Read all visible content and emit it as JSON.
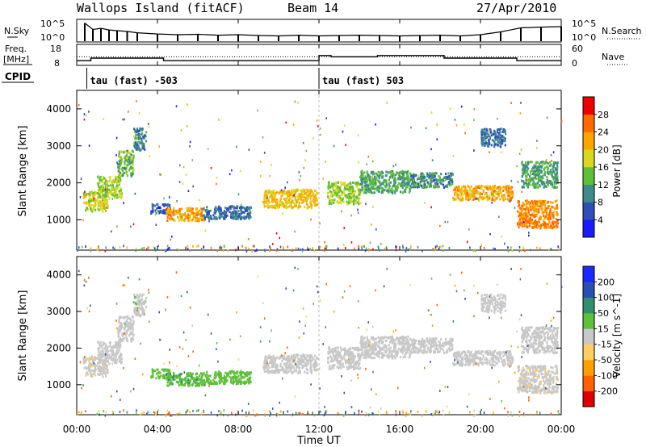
{
  "header": {
    "station": "Wallops Island (fitACF)",
    "beam": "Beam 14",
    "date": "27/Apr/2010"
  },
  "noise_panel": {
    "left_label": "N.Sky",
    "right_label": "N.Search",
    "left_ticks": [
      "10^5",
      "10^0"
    ],
    "right_ticks": [
      "10^5",
      "10^0"
    ]
  },
  "freq_panel": {
    "left_label_line1": "Freq.",
    "left_label_line2": "[MHz]",
    "right_label": "Nave",
    "left_ticks": [
      "18",
      "8"
    ],
    "right_ticks": [
      "60",
      "0"
    ]
  },
  "cpid_panel": {
    "label": "CPID",
    "entries": [
      {
        "time_hr": 0.5,
        "text": "tau (fast) -503"
      },
      {
        "time_hr": 12.0,
        "text": "tau (fast) 503"
      }
    ]
  },
  "time_axis": {
    "label": "Time UT",
    "range_hr": [
      0,
      24
    ],
    "ticks": [
      {
        "value": 0,
        "label": "00:00"
      },
      {
        "value": 4,
        "label": "04:00"
      },
      {
        "value": 8,
        "label": "08:00"
      },
      {
        "value": 12,
        "label": "12:00"
      },
      {
        "value": 16,
        "label": "16:00"
      },
      {
        "value": 20,
        "label": "20:00"
      },
      {
        "value": 24,
        "label": "00:00"
      }
    ]
  },
  "range_axis": {
    "label": "Slant Range [km]",
    "range_km": [
      180,
      4500
    ],
    "ticks": [
      1000,
      2000,
      3000,
      4000
    ]
  },
  "power_colorbar": {
    "label": "Power [dB]",
    "ticks": [
      "4",
      "8",
      "12",
      "16",
      "20",
      "24",
      "28"
    ],
    "colors": [
      "#1a1aff",
      "#2e4fb8",
      "#3f8a8a",
      "#5fbf3a",
      "#d8d820",
      "#ffa500",
      "#ff6a00",
      "#ee0000"
    ]
  },
  "velocity_colorbar": {
    "label": "Velocity [m s^-1]",
    "ticks": [
      "-200",
      "-100",
      "-50",
      "-15",
      "15",
      "50",
      "100",
      "200"
    ],
    "colors": [
      "#e00000",
      "#ff6000",
      "#ffa000",
      "#ffd060",
      "#c8c8c8",
      "#5fc03a",
      "#2f8f6f",
      "#2a4fb0",
      "#1a2aff"
    ]
  },
  "chart_data": [
    {
      "type": "line",
      "title": "N.Sky / N.Search",
      "x_unit": "hours UT",
      "yscale": "log",
      "ylim": [
        1,
        100000
      ],
      "x": [
        0.4,
        0.8,
        1.2,
        1.6,
        2.0,
        2.5,
        3.0,
        4.0,
        5.0,
        6.0,
        7.0,
        8.0,
        9.0,
        10.0,
        11.0,
        12.0,
        13.0,
        14.0,
        15.0,
        16.0,
        17.0,
        18.0,
        19.0,
        20.0,
        21.0,
        22.0,
        23.0,
        24.0
      ],
      "y": [
        30000,
        800,
        1500,
        600,
        400,
        250,
        120,
        60,
        40,
        50,
        30,
        40,
        25,
        20,
        30,
        20,
        25,
        30,
        25,
        20,
        25,
        30,
        20,
        40,
        200,
        2000,
        3000,
        4000
      ]
    },
    {
      "type": "line",
      "title": "Freq. / Nave",
      "x_unit": "hours UT",
      "series": [
        {
          "name": "Freq. [MHz]",
          "x": [
            0,
            0.7,
            0.7,
            4.3,
            4.3,
            12.0,
            12.0,
            12.6,
            12.6,
            14.9,
            14.9,
            18.2,
            18.2,
            21.8,
            21.8,
            24.0
          ],
          "y": [
            11,
            11,
            13,
            13,
            11,
            11,
            15,
            15,
            14,
            14,
            15,
            15,
            13,
            13,
            11,
            11
          ]
        },
        {
          "name": "Nave",
          "x": [
            0,
            24
          ],
          "y": [
            14,
            14
          ]
        }
      ]
    },
    {
      "type": "heatmap",
      "title": "Power [dB]",
      "x_unit": "hours UT",
      "y_unit": "km",
      "regions": [
        {
          "t0": 0.3,
          "t1": 1.5,
          "r0": 1250,
          "r1": 1800,
          "value": 18
        },
        {
          "t0": 1.0,
          "t1": 2.2,
          "r0": 1600,
          "r1": 2200,
          "value": 16
        },
        {
          "t0": 2.0,
          "t1": 2.8,
          "r0": 2200,
          "r1": 2900,
          "value": 14
        },
        {
          "t0": 2.8,
          "t1": 3.4,
          "r0": 2900,
          "r1": 3500,
          "value": 10
        },
        {
          "t0": 3.6,
          "t1": 4.6,
          "r0": 1200,
          "r1": 1450,
          "value": 6
        },
        {
          "t0": 4.4,
          "t1": 6.4,
          "r0": 1000,
          "r1": 1350,
          "value": 22
        },
        {
          "t0": 6.2,
          "t1": 8.6,
          "r0": 1050,
          "r1": 1400,
          "value": 8
        },
        {
          "t0": 9.2,
          "t1": 11.9,
          "r0": 1350,
          "r1": 1850,
          "value": 20
        },
        {
          "t0": 12.4,
          "t1": 14.0,
          "r0": 1450,
          "r1": 2050,
          "value": 16
        },
        {
          "t0": 14.0,
          "t1": 16.5,
          "r0": 1750,
          "r1": 2350,
          "value": 12
        },
        {
          "t0": 16.5,
          "t1": 18.6,
          "r0": 1900,
          "r1": 2300,
          "value": 10
        },
        {
          "t0": 18.6,
          "t1": 21.6,
          "r0": 1550,
          "r1": 1950,
          "value": 22
        },
        {
          "t0": 21.8,
          "t1": 23.8,
          "r0": 800,
          "r1": 1550,
          "value": 24
        },
        {
          "t0": 22.0,
          "t1": 23.8,
          "r0": 1900,
          "r1": 2600,
          "value": 12
        },
        {
          "t0": 20.0,
          "t1": 21.2,
          "r0": 3000,
          "r1": 3500,
          "value": 8
        }
      ]
    },
    {
      "type": "heatmap",
      "title": "Velocity [m s^-1]",
      "x_unit": "hours UT",
      "y_unit": "km",
      "regions": [
        {
          "t0": 0.3,
          "t1": 1.5,
          "r0": 1250,
          "r1": 1800,
          "value": -5
        },
        {
          "t0": 1.0,
          "t1": 2.2,
          "r0": 1600,
          "r1": 2200,
          "value": 0
        },
        {
          "t0": 2.0,
          "t1": 2.8,
          "r0": 2200,
          "r1": 2900,
          "value": 0
        },
        {
          "t0": 2.8,
          "t1": 3.4,
          "r0": 2900,
          "r1": 3500,
          "value": 5
        },
        {
          "t0": 3.6,
          "t1": 4.6,
          "r0": 1200,
          "r1": 1450,
          "value": 30
        },
        {
          "t0": 4.4,
          "t1": 6.4,
          "r0": 1000,
          "r1": 1350,
          "value": 40
        },
        {
          "t0": 6.2,
          "t1": 8.6,
          "r0": 1050,
          "r1": 1400,
          "value": 35
        },
        {
          "t0": 9.2,
          "t1": 11.9,
          "r0": 1350,
          "r1": 1850,
          "value": 0
        },
        {
          "t0": 12.4,
          "t1": 14.0,
          "r0": 1450,
          "r1": 2050,
          "value": 0
        },
        {
          "t0": 14.0,
          "t1": 16.5,
          "r0": 1750,
          "r1": 2350,
          "value": 0
        },
        {
          "t0": 16.5,
          "t1": 18.6,
          "r0": 1900,
          "r1": 2300,
          "value": 0
        },
        {
          "t0": 18.6,
          "t1": 21.6,
          "r0": 1550,
          "r1": 1950,
          "value": 0
        },
        {
          "t0": 21.8,
          "t1": 23.8,
          "r0": 800,
          "r1": 1550,
          "value": -5
        },
        {
          "t0": 22.0,
          "t1": 23.8,
          "r0": 1900,
          "r1": 2600,
          "value": 0
        },
        {
          "t0": 20.0,
          "t1": 21.2,
          "r0": 3000,
          "r1": 3500,
          "value": 0
        }
      ]
    }
  ]
}
